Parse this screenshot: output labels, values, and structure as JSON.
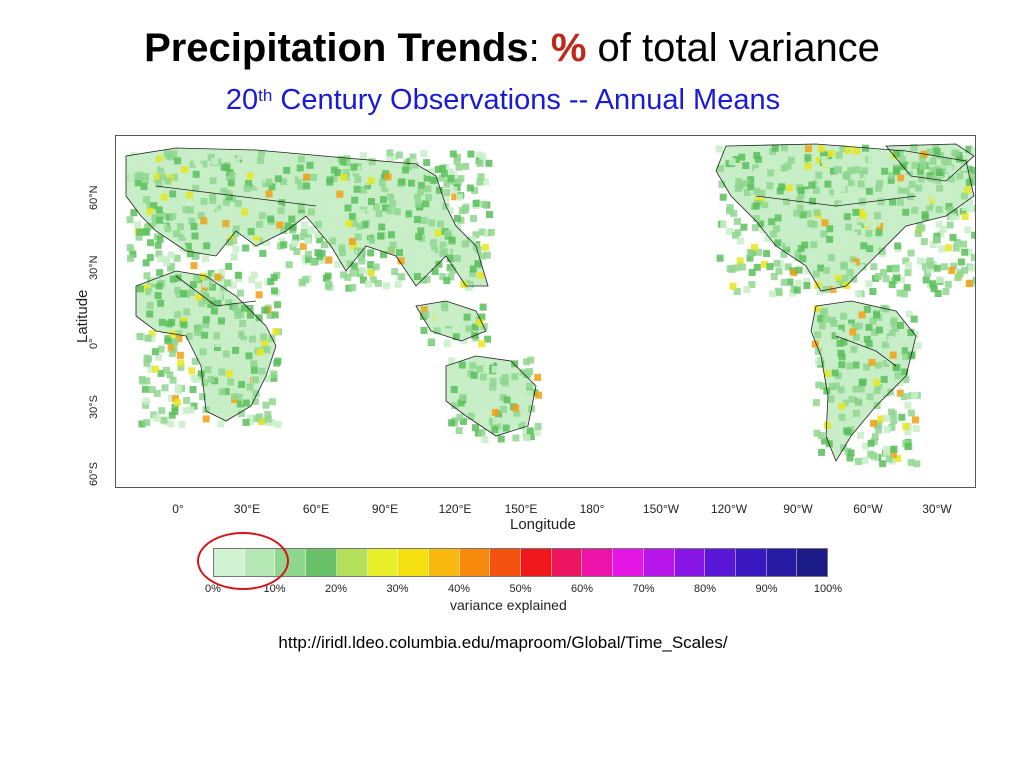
{
  "title": {
    "bold": "Precipitation Trends",
    "colon": ":",
    "percent": "%",
    "rest": "of total variance"
  },
  "subtitle": {
    "ordinal": "20",
    "ordinal_suffix": "th",
    "rest": "Century Observations -- Annual Means"
  },
  "map": {
    "y_axis_label": "Latitude",
    "x_axis_label": "Longitude",
    "y_ticks": [
      "60°N",
      "30°N",
      "0°",
      "30°S",
      "60°S"
    ],
    "x_ticks": [
      "0°",
      "30°E",
      "60°E",
      "90°E",
      "120°E",
      "150°E",
      "180°",
      "150°W",
      "120°W",
      "90°W",
      "60°W",
      "30°W"
    ],
    "colors": {
      "land_low": "#c8eec8",
      "land_mid": "#8fd68f",
      "land_high": "#5bbf5b",
      "trend_yellow": "#e6e620",
      "trend_orange": "#f2a013",
      "boundary": "#222222"
    }
  },
  "colorbar": {
    "label": "variance explained",
    "ticks": [
      "0%",
      "10%",
      "20%",
      "30%",
      "40%",
      "50%",
      "60%",
      "70%",
      "80%",
      "90%",
      "100%"
    ],
    "colors": [
      "#d2f3d2",
      "#b6e8b6",
      "#8fd68f",
      "#69c269",
      "#b5e05a",
      "#e8ee2a",
      "#f5e011",
      "#f8b80e",
      "#f78a0c",
      "#f4520f",
      "#f0171b",
      "#ee1560",
      "#ec14a8",
      "#e515e5",
      "#b815ea",
      "#8a16e6",
      "#5a17d9",
      "#3818c0",
      "#261aa2",
      "#1c1c86"
    ],
    "highlighted_range": "0% - 10%"
  },
  "source_url": "http://iridl.ldeo.columbia.edu/maproom/Global/Time_Scales/"
}
